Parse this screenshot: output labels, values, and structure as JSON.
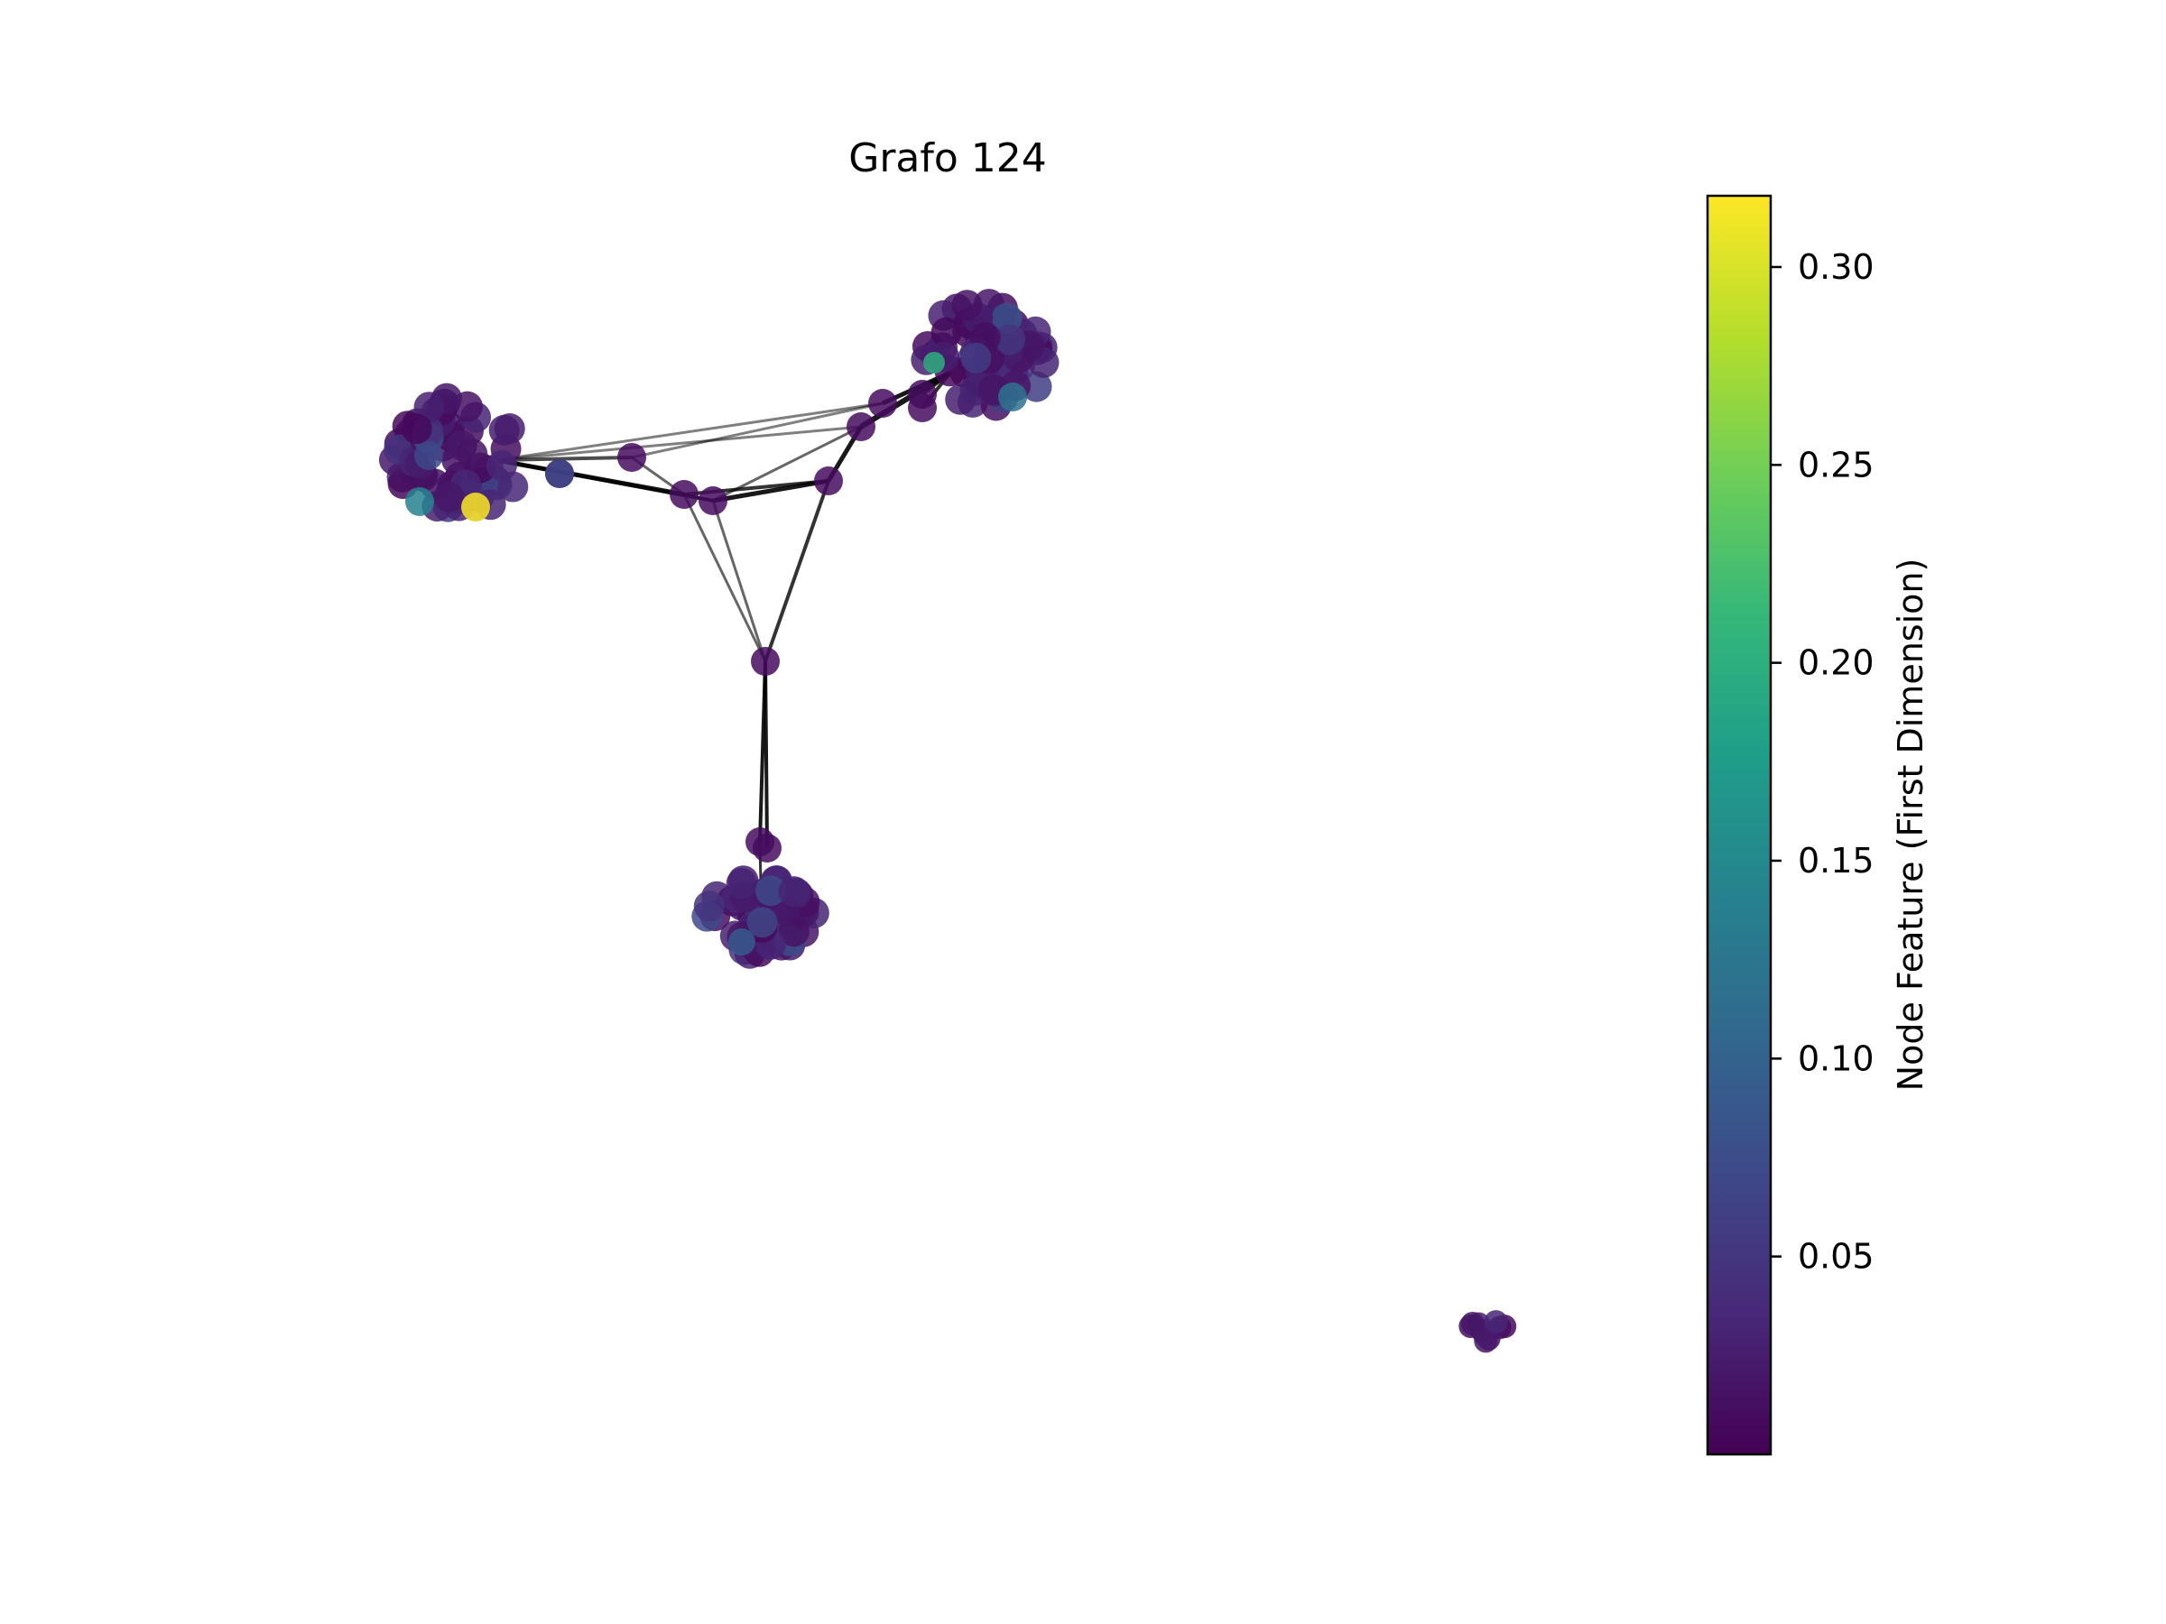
{
  "title": "Grafo 124",
  "colorbar": {
    "label": "Node Feature (First Dimension)",
    "min": 0.0,
    "max": 0.318,
    "ticks": [
      0.05,
      0.1,
      0.15,
      0.2,
      0.25,
      0.3
    ],
    "tick_labels": [
      "0.05",
      "0.10",
      "0.15",
      "0.20",
      "0.25",
      "0.30"
    ],
    "colormap": "viridis",
    "colors": [
      "#440154",
      "#482878",
      "#3e4989",
      "#31688e",
      "#26828e",
      "#1f9e89",
      "#35b779",
      "#6ece58",
      "#b5de2b",
      "#fde725"
    ]
  },
  "graph": {
    "node_color_default": "#440154",
    "edge_color": "#000000",
    "clusters": [
      {
        "id": "cluster-left",
        "node_count": 60
      },
      {
        "id": "cluster-right",
        "node_count": 60
      },
      {
        "id": "cluster-bottom",
        "node_count": 55
      },
      {
        "id": "cluster-small",
        "node_count": 10
      }
    ],
    "highlight_values": [
      0.318,
      0.14,
      0.12,
      0.09,
      0.07,
      0.2
    ]
  }
}
